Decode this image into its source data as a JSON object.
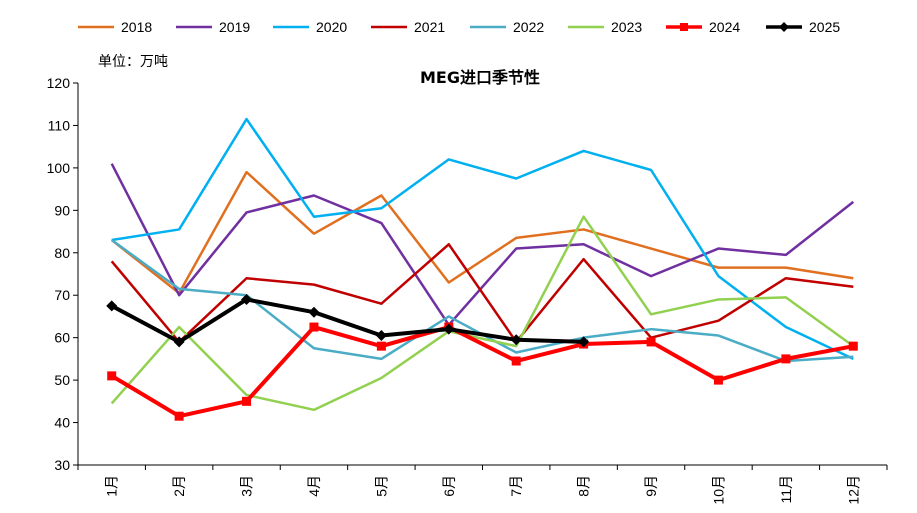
{
  "chart_data": {
    "type": "line",
    "title": "MEG进口季节性",
    "unit_label": "单位：万吨",
    "xlabel": "",
    "ylabel": "",
    "ylim": [
      30,
      120
    ],
    "yticks": [
      30,
      40,
      50,
      60,
      70,
      80,
      90,
      100,
      110,
      120
    ],
    "categories": [
      "1月",
      "2月",
      "3月",
      "4月",
      "5月",
      "6月",
      "7月",
      "8月",
      "9月",
      "10月",
      "11月",
      "12月"
    ],
    "legend_position": "top",
    "series": [
      {
        "name": "2018",
        "color": "#E07020",
        "marker": "none",
        "values": [
          83,
          70.5,
          99,
          84.5,
          93.5,
          73,
          83.5,
          85.5,
          81,
          76.5,
          76.5,
          74
        ]
      },
      {
        "name": "2019",
        "color": "#7030A0",
        "marker": "none",
        "values": [
          101,
          70,
          89.5,
          93.5,
          87,
          63,
          81,
          82,
          74.5,
          81,
          79.5,
          92
        ]
      },
      {
        "name": "2020",
        "color": "#00B0F0",
        "marker": "none",
        "values": [
          83,
          85.5,
          111.5,
          88.5,
          90.5,
          102,
          97.5,
          104,
          99.5,
          74.5,
          62.5,
          55
        ]
      },
      {
        "name": "2021",
        "color": "#C00000",
        "marker": "none",
        "values": [
          78,
          59,
          74,
          72.5,
          68,
          82,
          59,
          78.5,
          60,
          64,
          74,
          72
        ]
      },
      {
        "name": "2022",
        "color": "#4BACC6",
        "marker": "none",
        "values": [
          83,
          71.5,
          70,
          57.5,
          55,
          65,
          56.5,
          60,
          62,
          60.5,
          54.5,
          55.5
        ]
      },
      {
        "name": "2023",
        "color": "#92D050",
        "marker": "none",
        "values": [
          44.5,
          62.5,
          46.5,
          43,
          50.5,
          61.5,
          58,
          88.5,
          65.5,
          69,
          69.5,
          58
        ]
      },
      {
        "name": "2024",
        "color": "#FF0000",
        "marker": "square",
        "values": [
          51,
          41.5,
          45,
          62.5,
          58,
          62.5,
          54.5,
          58.5,
          59,
          50,
          55,
          58
        ]
      },
      {
        "name": "2025",
        "color": "#000000",
        "marker": "diamond",
        "values": [
          67.5,
          59,
          69,
          66,
          60.5,
          62,
          59.5,
          59,
          null,
          null,
          null,
          null
        ]
      }
    ]
  }
}
